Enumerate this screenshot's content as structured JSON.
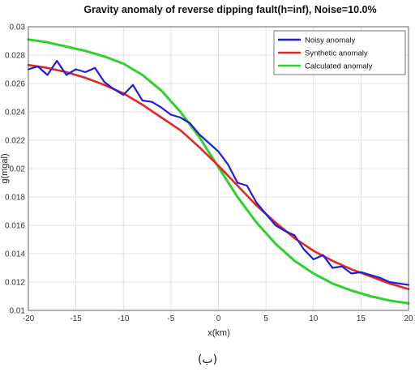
{
  "caption": "(ب)",
  "chart_data": {
    "type": "line",
    "title": "Gravity anomaly of reverse dipping fault(h=inf), Noise=10.0%",
    "xlabel": "x(km)",
    "ylabel": "g(mgal)",
    "xlim": [
      -20,
      20
    ],
    "ylim": [
      0.01,
      0.03
    ],
    "xticks": [
      -20,
      -15,
      -10,
      -5,
      0,
      5,
      10,
      15,
      20
    ],
    "yticks": [
      0.01,
      0.012,
      0.014,
      0.016,
      0.018,
      0.02,
      0.022,
      0.024,
      0.026,
      0.028,
      0.03
    ],
    "xtick_labels": [
      "-20",
      "-15",
      "-10",
      "-5",
      "0",
      "5",
      "10",
      "15",
      "20"
    ],
    "ytick_labels": [
      "0.01",
      "0.012",
      "0.014",
      "0.016",
      "0.018",
      "0.02",
      "0.022",
      "0.024",
      "0.026",
      "0.028",
      "0.03"
    ],
    "grid": true,
    "legend_position": "top-right",
    "series": [
      {
        "name": "Noisy anomaly",
        "color": "#1f1fd6",
        "x": [
          -20,
          -19,
          -18,
          -17,
          -16,
          -15,
          -14,
          -13,
          -12,
          -11,
          -10,
          -9,
          -8,
          -7,
          -6,
          -5,
          -4,
          -3,
          -2,
          -1,
          0,
          1,
          2,
          3,
          4,
          5,
          6,
          7,
          8,
          9,
          10,
          11,
          12,
          13,
          14,
          15,
          16,
          17,
          18,
          19,
          20
        ],
        "y": [
          0.027,
          0.0272,
          0.0266,
          0.0276,
          0.0266,
          0.027,
          0.0268,
          0.0271,
          0.0261,
          0.0256,
          0.0252,
          0.0259,
          0.0248,
          0.0247,
          0.0243,
          0.0238,
          0.0236,
          0.0232,
          0.0224,
          0.0218,
          0.0212,
          0.0203,
          0.019,
          0.0188,
          0.0176,
          0.0168,
          0.016,
          0.0156,
          0.0153,
          0.0143,
          0.0136,
          0.0139,
          0.013,
          0.0131,
          0.0126,
          0.0127,
          0.0125,
          0.0123,
          0.012,
          0.0119,
          0.0118
        ]
      },
      {
        "name": "Synthetic anomaly",
        "color": "#e32626",
        "x": [
          -20,
          -18,
          -16,
          -14,
          -12,
          -10,
          -8,
          -6,
          -4,
          -2,
          0,
          2,
          4,
          6,
          8,
          10,
          12,
          14,
          16,
          18,
          20
        ],
        "y": [
          0.0273,
          0.0271,
          0.0268,
          0.0264,
          0.0259,
          0.0253,
          0.0245,
          0.0236,
          0.0227,
          0.0215,
          0.0202,
          0.0188,
          0.0174,
          0.0162,
          0.0151,
          0.0142,
          0.0135,
          0.0129,
          0.0124,
          0.0119,
          0.0115
        ]
      },
      {
        "name": "Calculated anomaly",
        "color": "#2ed12e",
        "x": [
          -20,
          -18,
          -16,
          -14,
          -12,
          -10,
          -8,
          -6,
          -4,
          -2,
          0,
          2,
          4,
          6,
          8,
          10,
          12,
          14,
          16,
          18,
          20
        ],
        "y": [
          0.0291,
          0.0289,
          0.0286,
          0.0283,
          0.0279,
          0.0274,
          0.0266,
          0.0255,
          0.024,
          0.0222,
          0.0201,
          0.018,
          0.0162,
          0.0147,
          0.0135,
          0.0126,
          0.0119,
          0.0114,
          0.011,
          0.0107,
          0.0105
        ]
      }
    ]
  }
}
